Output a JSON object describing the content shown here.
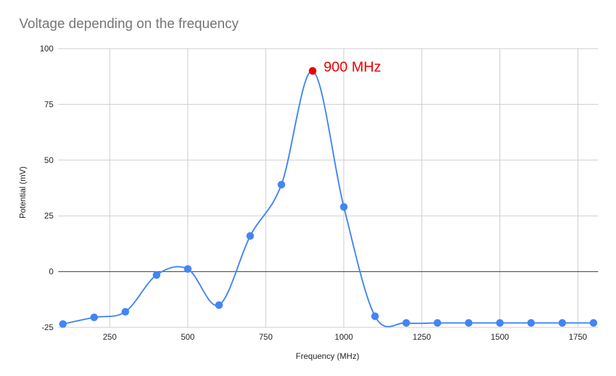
{
  "chart_data": {
    "type": "line",
    "title": "Voltage depending on the frequency",
    "xlabel": "Frequency (MHz)",
    "ylabel": "Potential (mV)",
    "xlim": [
      85,
      1815
    ],
    "ylim": [
      -25,
      100
    ],
    "x_ticks": [
      250,
      500,
      750,
      1000,
      1250,
      1500,
      1750
    ],
    "y_ticks": [
      -25,
      0,
      25,
      50,
      75,
      100
    ],
    "grid": true,
    "legend": "none",
    "smooth": true,
    "series": [
      {
        "x": [
          100,
          200,
          300,
          400,
          500,
          600,
          700,
          800,
          900,
          1000,
          1100,
          1200,
          1300,
          1400,
          1500,
          1600,
          1700,
          1800
        ],
        "y": [
          -23.5,
          -20.5,
          -18,
          -1.5,
          1.2,
          -15,
          16,
          39,
          90,
          29,
          -20,
          -23,
          -23,
          -23,
          -23,
          -23,
          -23,
          -23
        ]
      }
    ],
    "annotations": [
      {
        "x": 900,
        "y": 90,
        "text": "900 MHz"
      }
    ],
    "colors": {
      "line": "#4285f4",
      "marker": "#4285f4",
      "highlight": "#ea0000",
      "grid": "#cccccc",
      "zero_line": "#333333",
      "title": "#757575",
      "axis_text": "#222222"
    }
  }
}
